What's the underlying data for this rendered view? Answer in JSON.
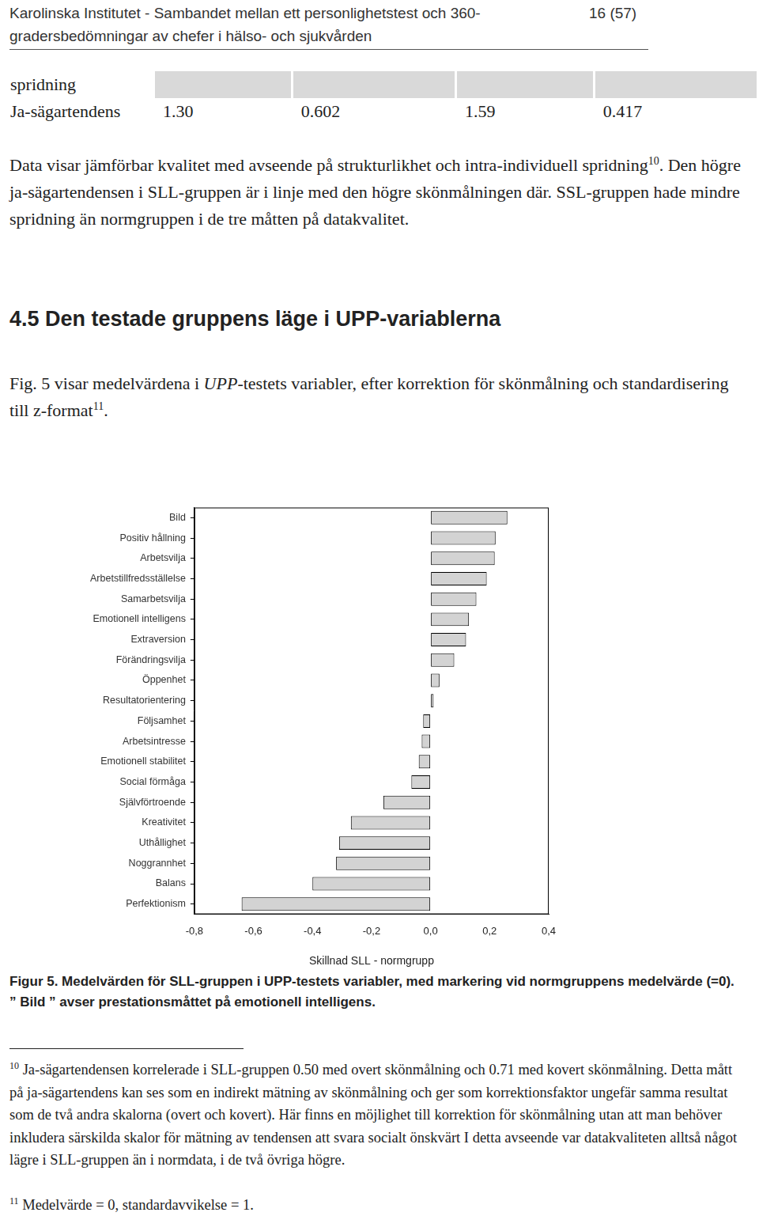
{
  "header": {
    "title_lines": [
      "Karolinska Institutet - Sambandet mellan ett personlighetstest och 360-",
      "gradersbedömningar av chefer i hälso- och sjukvården"
    ],
    "page": "16 (57)"
  },
  "table": {
    "rows": [
      {
        "label": "spridning"
      },
      {
        "label": "Ja-sägartendens",
        "values": [
          "1.30",
          "0.602",
          "1.59",
          "0.417"
        ]
      }
    ]
  },
  "paragraph_1": [
    {
      "text": "Data visar jämförbar kvalitet med avseende på strukturlikhet och intra-individuell spridning"
    },
    {
      "text": "10",
      "style": "sup"
    },
    {
      "text": ". Den högre ja-sägartendensen i SLL-gruppen är i linje med den högre skönmålningen där. SSL-gruppen hade mindre spridning än normgruppen i de tre måtten på datakvalitet."
    }
  ],
  "heading": "4.5 Den testade gruppens läge i UPP-variablerna",
  "paragraph_2": [
    {
      "text": "Fig. 5 visar medelvärdena i "
    },
    {
      "text": "UPP",
      "style": "italic"
    },
    {
      "text": "-testets variabler, efter korrektion för skönmålning och standardisering till z-format"
    },
    {
      "text": "11",
      "style": "sup"
    },
    {
      "text": "."
    }
  ],
  "chart_data": {
    "type": "bar",
    "orientation": "horizontal",
    "categories": [
      "Bild",
      "Positiv hållning",
      "Arbetsvilja",
      "Arbetstillfredsställelse",
      "Samarbetsvilja",
      "Emotionell intelligens",
      "Extraversion",
      "Förändringsvilja",
      "Öppenhet",
      "Resultatorientering",
      "Följsamhet",
      "Arbetsintresse",
      "Emotionell stabilitet",
      "Social förmåga",
      "Självförtroende",
      "Kreativitet",
      "Uthållighet",
      "Noggrannhet",
      "Balans",
      "Perfektionism"
    ],
    "values": [
      0.26,
      0.22,
      0.217,
      0.19,
      0.155,
      0.13,
      0.12,
      0.08,
      0.03,
      0.01,
      -0.025,
      -0.03,
      -0.04,
      -0.065,
      -0.16,
      -0.27,
      -0.31,
      -0.32,
      -0.4,
      -0.64
    ],
    "color": "#d3d3d3",
    "xlim": [
      -0.8,
      0.4
    ],
    "xticks": [
      {
        "value": -0.8,
        "label": "-0,8"
      },
      {
        "value": -0.6,
        "label": "-0,6"
      },
      {
        "value": -0.4,
        "label": "-0,4"
      },
      {
        "value": -0.2,
        "label": "-0,2"
      },
      {
        "value": 0,
        "label": "0,0"
      },
      {
        "value": 0.2,
        "label": "0,2"
      },
      {
        "value": 0.4,
        "label": "0,4"
      }
    ],
    "x_label": "Skillnad SLL - normgrupp",
    "grid": false
  },
  "caption": "Figur 5. Medelvärden för SLL-gruppen i UPP-testets variabler, med markering vid normgruppens medelvärde (=0). ” Bild ” avser prestationsmåttet på emotionell intelligens.",
  "footnotes": [
    [
      {
        "text": "10",
        "style": "sup"
      },
      {
        "text": " Ja-sägartendensen korrelerade i SLL-gruppen 0.50 med overt skönmålning och 0.71 med kovert skönmålning. Detta mått på ja-sägartendens kan ses som en indirekt mätning av skönmålning och ger som korrektionsfaktor ungefär samma resultat som de två andra skalorna (overt och kovert).  Här finns en möjlighet till korrektion för skönmålning utan att man behöver inkludera särskilda skalor för mätning av tendensen att svara socialt önskvärt I detta avseende var datakvaliteten alltså något lägre i SLL-gruppen än i normdata, i de två övriga högre."
      }
    ],
    [
      {
        "text": "11",
        "style": "sup"
      },
      {
        "text": " Medelvärde = 0, standardavvikelse = 1."
      }
    ]
  ]
}
